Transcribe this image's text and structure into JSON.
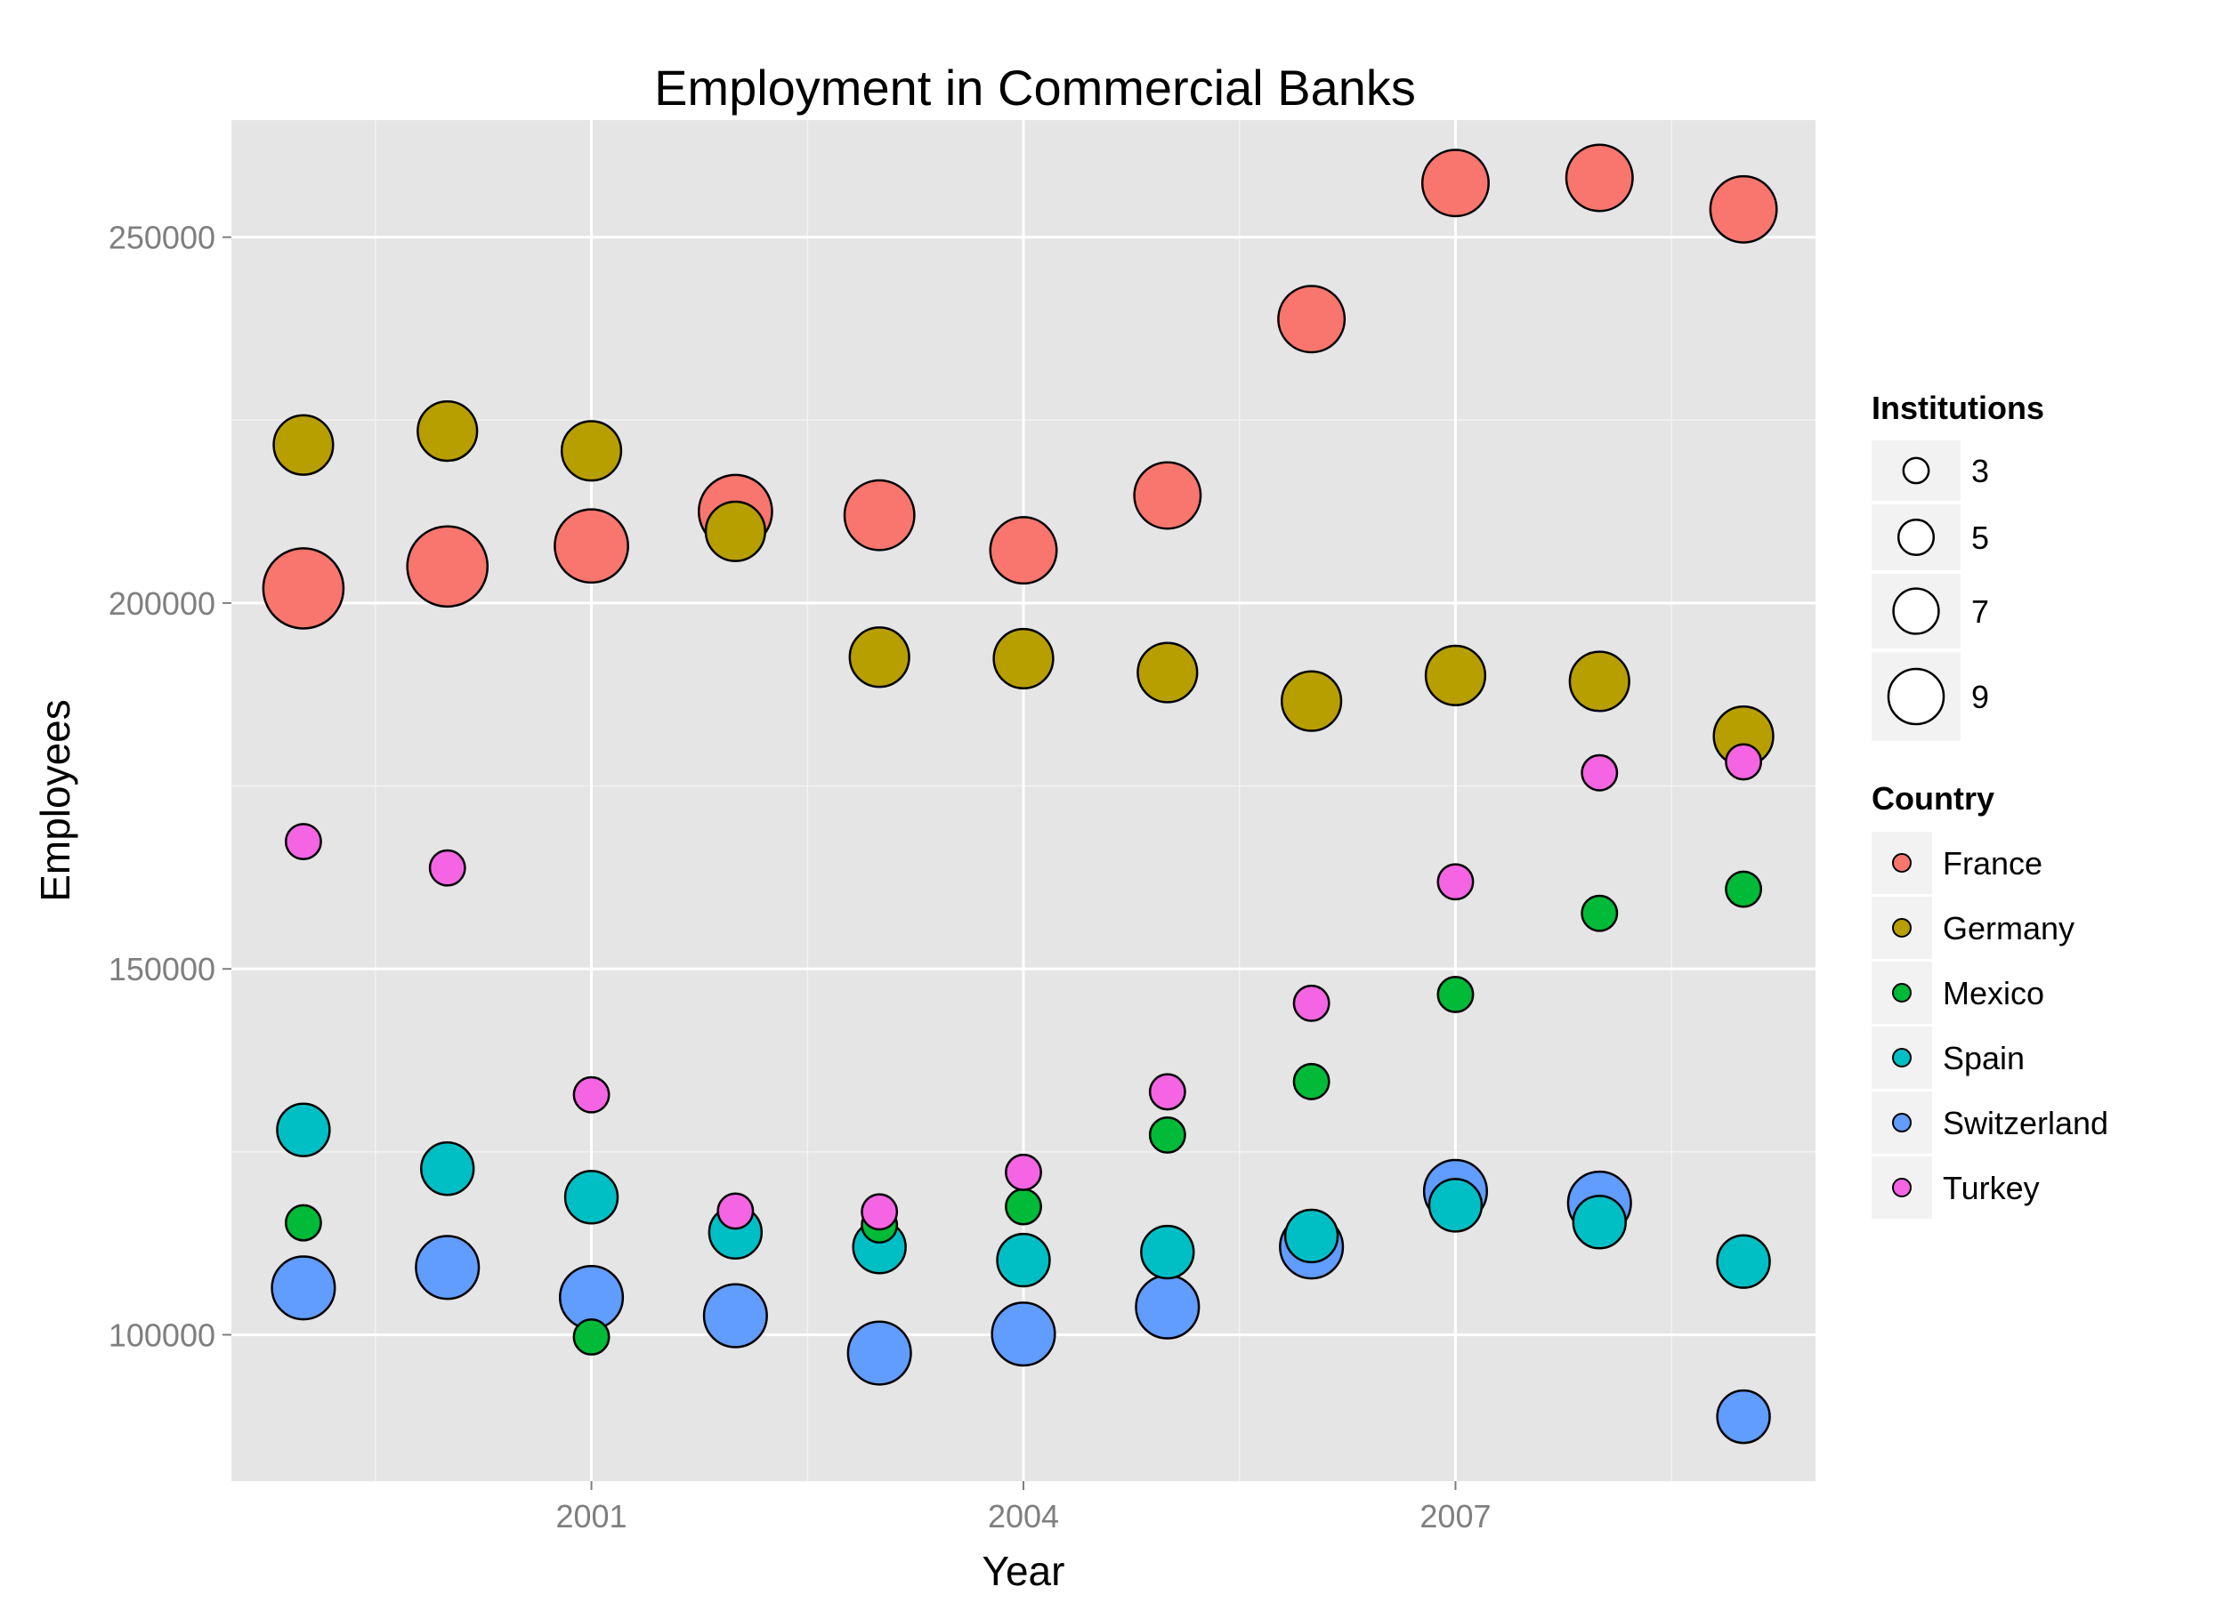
{
  "chart_data": {
    "type": "scatter",
    "title": "Employment in Commercial Banks",
    "xlabel": "Year",
    "ylabel": "Employees",
    "xlim": [
      1998.5,
      2009.5
    ],
    "ylim": [
      80000,
      266000
    ],
    "x_ticks": [
      2001,
      2004,
      2007
    ],
    "x_tick_labels": [
      "2001",
      "2004",
      "2007"
    ],
    "y_ticks": [
      100000,
      150000,
      200000,
      250000
    ],
    "y_tick_labels": [
      "100000",
      "150000",
      "200000",
      "250000"
    ],
    "grid": true,
    "legend_position": "right",
    "size_legend": {
      "title": "Institutions",
      "values": [
        3,
        5,
        7,
        9
      ],
      "labels": [
        "3",
        "5",
        "7",
        "9"
      ]
    },
    "color_legend": {
      "title": "Country"
    },
    "series": [
      {
        "name": "France",
        "color": "#F8766D",
        "x": [
          1999,
          2000,
          2001,
          2002,
          2003,
          2004,
          2005,
          2006,
          2007,
          2008,
          2009
        ],
        "y": [
          202000,
          205000,
          207800,
          212500,
          212000,
          207200,
          214700,
          238800,
          257400,
          258100,
          253800
        ],
        "size": [
          9.5,
          9.5,
          8.5,
          8.5,
          8,
          7.5,
          7.5,
          7.5,
          7.5,
          7.5,
          7.5
        ]
      },
      {
        "name": "Germany",
        "color": "#B79F00",
        "x": [
          1999,
          2000,
          2001,
          2002,
          2003,
          2004,
          2005,
          2006,
          2007,
          2008,
          2009
        ],
        "y": [
          221600,
          223500,
          220800,
          209800,
          192600,
          192400,
          190500,
          186600,
          190100,
          189300,
          181800
        ],
        "size": [
          6.5,
          6.5,
          6.5,
          6.5,
          6.5,
          6.5,
          6.5,
          6.5,
          6.5,
          6.5,
          6.5
        ]
      },
      {
        "name": "Mexico",
        "color": "#00BA38",
        "x": [
          1999,
          2001,
          2003,
          2004,
          2005,
          2006,
          2007,
          2008,
          2009
        ],
        "y": [
          115300,
          99700,
          115000,
          117500,
          127300,
          134600,
          146500,
          157600,
          160900
        ],
        "size": [
          3,
          3,
          3,
          3,
          3,
          3,
          3,
          3,
          3
        ]
      },
      {
        "name": "Spain",
        "color": "#00BFC4",
        "x": [
          1999,
          2000,
          2001,
          2002,
          2003,
          2004,
          2005,
          2006,
          2007,
          2008,
          2009
        ],
        "y": [
          128000,
          122700,
          118800,
          114000,
          112000,
          110200,
          111300,
          113500,
          117700,
          115400,
          110000
        ],
        "size": [
          5.5,
          5.5,
          5.5,
          5.5,
          5.5,
          5.5,
          5.5,
          5.5,
          5.5,
          5.5,
          5.5
        ]
      },
      {
        "name": "Switzerland",
        "color": "#619CFF",
        "x": [
          1999,
          2000,
          2001,
          2002,
          2003,
          2004,
          2005,
          2006,
          2007,
          2008,
          2009
        ],
        "y": [
          106400,
          109200,
          105100,
          102600,
          97500,
          100100,
          103800,
          112000,
          119600,
          118000,
          88800
        ],
        "size": [
          7,
          7,
          7,
          7,
          7,
          7,
          7,
          7,
          7,
          7,
          5.5
        ]
      },
      {
        "name": "Turkey",
        "color": "#F564E3",
        "x": [
          1999,
          2000,
          2001,
          2002,
          2003,
          2004,
          2005,
          2006,
          2007,
          2008,
          2009
        ],
        "y": [
          167400,
          163800,
          132800,
          116900,
          116800,
          122200,
          133200,
          145300,
          161900,
          176800,
          178300
        ],
        "size": [
          3,
          3,
          3,
          3,
          3,
          3,
          3,
          3,
          3,
          3,
          3
        ]
      }
    ]
  }
}
